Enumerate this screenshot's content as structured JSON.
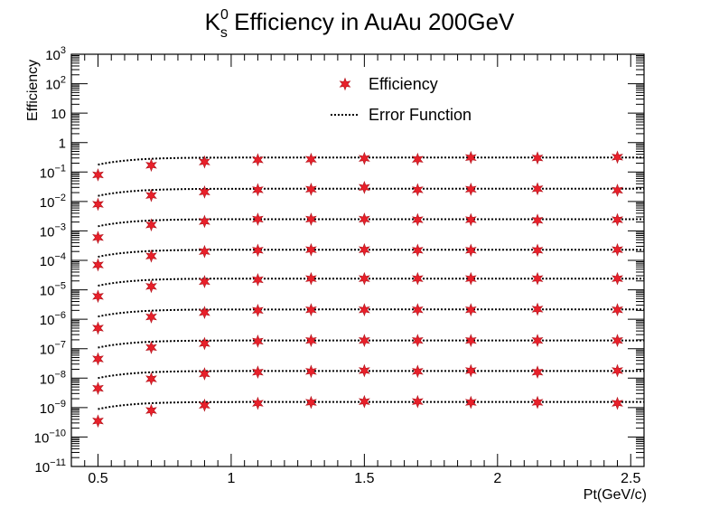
{
  "chart_data": {
    "type": "scatter",
    "title": {
      "main": "K",
      "sup": "0",
      "sub": "s",
      "rest": " Efficiency in AuAu 200GeV"
    },
    "xlabel": "Pt(GeV/c)",
    "ylabel": "Efficiency",
    "xlim": [
      0.4,
      2.55
    ],
    "ylim_exp": [
      -11,
      3
    ],
    "yscale": "log",
    "grid": false,
    "legend_position": "top-center",
    "x_ticks": [
      {
        "v": 0.5,
        "label": "0.5"
      },
      {
        "v": 1,
        "label": "1"
      },
      {
        "v": 1.5,
        "label": "1.5"
      },
      {
        "v": 2,
        "label": "2"
      },
      {
        "v": 2.5,
        "label": "2.5"
      }
    ],
    "y_ticks": [
      {
        "exp": 3,
        "base": "10",
        "sup": "3"
      },
      {
        "exp": 2,
        "base": "10",
        "sup": "2"
      },
      {
        "exp": 1,
        "base": "10",
        "sup": ""
      },
      {
        "exp": 0,
        "base": "1",
        "sup": ""
      },
      {
        "exp": -1,
        "base": "10",
        "sup": "−1"
      },
      {
        "exp": -2,
        "base": "10",
        "sup": "−2"
      },
      {
        "exp": -3,
        "base": "10",
        "sup": "−3"
      },
      {
        "exp": -4,
        "base": "10",
        "sup": "−4"
      },
      {
        "exp": -5,
        "base": "10",
        "sup": "−5"
      },
      {
        "exp": -6,
        "base": "10",
        "sup": "−6"
      },
      {
        "exp": -7,
        "base": "10",
        "sup": "−7"
      },
      {
        "exp": -8,
        "base": "10",
        "sup": "−8"
      },
      {
        "exp": -9,
        "base": "10",
        "sup": "−9"
      },
      {
        "exp": -10,
        "base": "10",
        "sup": "−10"
      },
      {
        "exp": -11,
        "base": "10",
        "sup": "−11"
      }
    ],
    "legend": [
      {
        "label": "Efficiency",
        "kind": "marker"
      },
      {
        "label": "Error Function",
        "kind": "dotted-line"
      }
    ],
    "marker_color": "#e8202a",
    "line_color": "#000000",
    "x": [
      0.5,
      0.7,
      0.9,
      1.1,
      1.3,
      1.5,
      1.7,
      1.9,
      2.15,
      2.45
    ],
    "series": [
      {
        "values": [
          0.08,
          0.17,
          0.22,
          0.26,
          0.27,
          0.29,
          0.27,
          0.31,
          0.3,
          0.32
        ]
      },
      {
        "values": [
          0.008,
          0.016,
          0.021,
          0.025,
          0.026,
          0.03,
          0.025,
          0.026,
          0.027,
          0.024
        ]
      },
      {
        "values": [
          0.0006,
          0.0016,
          0.0021,
          0.0025,
          0.0025,
          0.0025,
          0.0024,
          0.0024,
          0.0023,
          0.0024
        ]
      },
      {
        "values": [
          7e-05,
          0.00014,
          0.0002,
          0.00022,
          0.00023,
          0.00023,
          0.00022,
          0.00022,
          0.00022,
          0.00023
        ]
      },
      {
        "values": [
          6e-06,
          1.3e-05,
          1.9e-05,
          2.2e-05,
          2.4e-05,
          2.4e-05,
          2.4e-05,
          2.4e-05,
          2.4e-05,
          2.4e-05
        ]
      },
      {
        "values": [
          5e-07,
          1.2e-06,
          1.7e-06,
          2e-06,
          2.1e-06,
          2.1e-06,
          2.1e-06,
          2.1e-06,
          2.2e-06,
          2.1e-06
        ]
      },
      {
        "values": [
          4.5e-08,
          1.1e-07,
          1.5e-07,
          1.8e-07,
          1.9e-07,
          1.9e-07,
          1.9e-07,
          1.9e-07,
          1.9e-07,
          1.9e-07
        ]
      },
      {
        "values": [
          4.5e-09,
          9.5e-09,
          1.4e-08,
          1.6e-08,
          1.7e-08,
          1.8e-08,
          1.7e-08,
          1.8e-08,
          1.6e-08,
          1.8e-08
        ]
      },
      {
        "values": [
          3.5e-10,
          8e-10,
          1.2e-09,
          1.4e-09,
          1.5e-09,
          1.6e-09,
          1.6e-09,
          1.5e-09,
          1.5e-09,
          1.4e-09
        ]
      }
    ],
    "fits": [
      {
        "plateau": 0.31,
        "x0": 0.32,
        "sigma": 0.32
      },
      {
        "plateau": 0.027,
        "x0": 0.32,
        "sigma": 0.32
      },
      {
        "plateau": 0.0025,
        "x0": 0.32,
        "sigma": 0.32
      },
      {
        "plateau": 0.00023,
        "x0": 0.32,
        "sigma": 0.32
      },
      {
        "plateau": 2.4e-05,
        "x0": 0.32,
        "sigma": 0.32
      },
      {
        "plateau": 2.15e-06,
        "x0": 0.32,
        "sigma": 0.32
      },
      {
        "plateau": 1.9e-07,
        "x0": 0.32,
        "sigma": 0.32
      },
      {
        "plateau": 1.75e-08,
        "x0": 0.32,
        "sigma": 0.32
      },
      {
        "plateau": 1.55e-09,
        "x0": 0.32,
        "sigma": 0.32
      }
    ]
  }
}
